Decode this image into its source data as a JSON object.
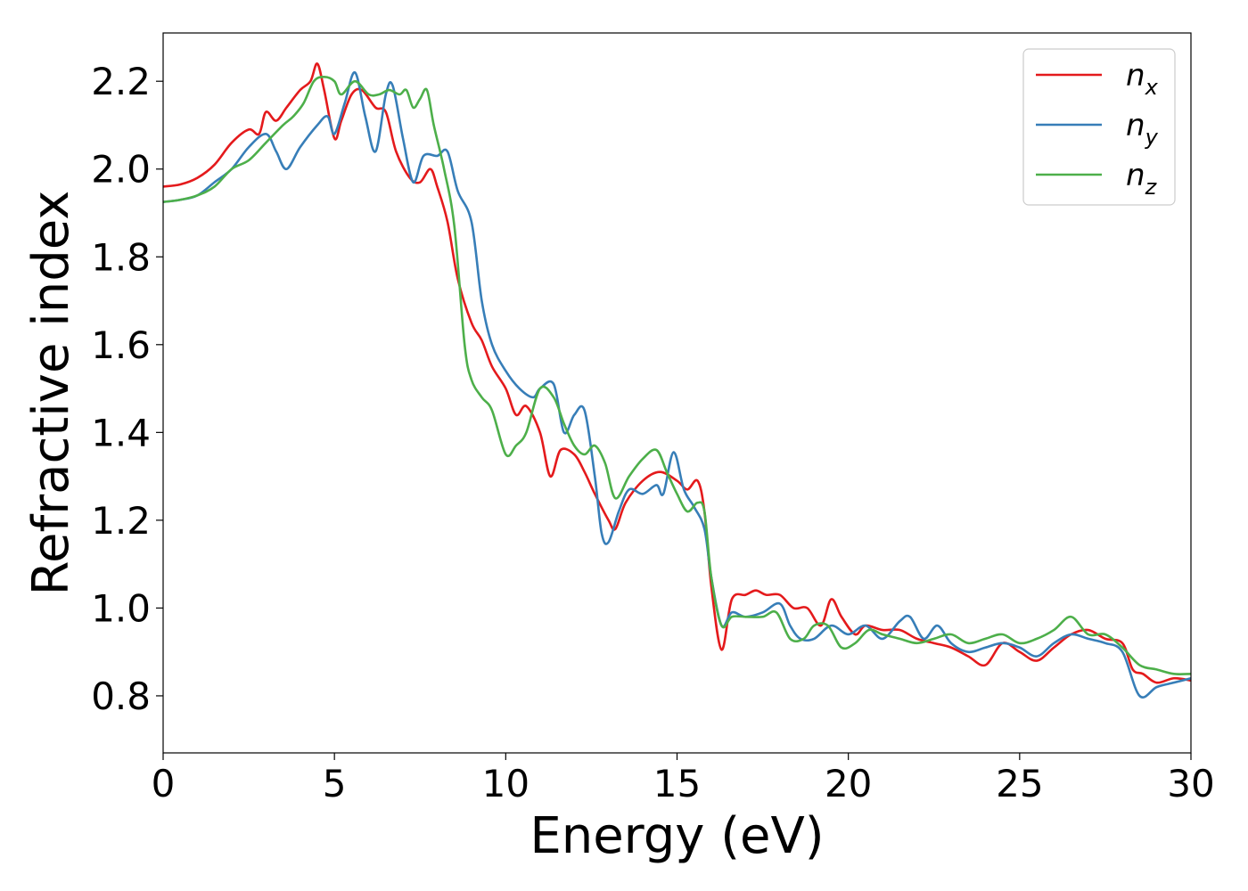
{
  "chart_data": {
    "type": "line",
    "xlabel": "Energy (eV)",
    "ylabel": "Refractive index",
    "xlim": [
      0,
      30
    ],
    "ylim": [
      0.67,
      2.31
    ],
    "xticks": [
      0,
      5,
      10,
      15,
      20,
      25,
      30
    ],
    "xtick_labels": [
      "0",
      "5",
      "10",
      "15",
      "20",
      "25",
      "30"
    ],
    "yticks": [
      0.8,
      1.0,
      1.2,
      1.4,
      1.6,
      1.8,
      2.0,
      2.2
    ],
    "ytick_labels": [
      "0.8",
      "1.0",
      "1.2",
      "1.4",
      "1.6",
      "1.8",
      "2.0",
      "2.2"
    ],
    "grid": false,
    "legend": "top-right",
    "series": [
      {
        "name": "n",
        "subscript": "x",
        "color": "#e41a1c",
        "x": [
          0,
          0.5,
          1.0,
          1.5,
          2.0,
          2.5,
          2.8,
          3.0,
          3.3,
          3.6,
          4.0,
          4.3,
          4.5,
          4.7,
          5.0,
          5.2,
          5.5,
          5.8,
          6.2,
          6.5,
          6.8,
          7.2,
          7.5,
          7.8,
          8.0,
          8.3,
          8.6,
          9.0,
          9.3,
          9.6,
          10.0,
          10.3,
          10.6,
          11.0,
          11.3,
          11.6,
          12.0,
          12.3,
          12.6,
          13.0,
          13.2,
          13.5,
          14.0,
          14.5,
          15.0,
          15.3,
          15.6,
          15.8,
          16.0,
          16.3,
          16.6,
          17.0,
          17.3,
          17.6,
          18.0,
          18.4,
          18.8,
          19.2,
          19.5,
          19.8,
          20.2,
          20.5,
          21.0,
          21.5,
          22.0,
          22.5,
          23.0,
          23.5,
          24.0,
          24.5,
          25.0,
          25.5,
          26.0,
          26.5,
          27.0,
          27.5,
          28.0,
          28.3,
          28.6,
          29.0,
          29.5,
          30.0
        ],
        "y": [
          1.96,
          1.965,
          1.98,
          2.01,
          2.06,
          2.09,
          2.08,
          2.13,
          2.11,
          2.14,
          2.18,
          2.2,
          2.24,
          2.18,
          2.07,
          2.11,
          2.17,
          2.18,
          2.14,
          2.13,
          2.04,
          1.98,
          1.97,
          2.0,
          1.96,
          1.88,
          1.75,
          1.65,
          1.61,
          1.55,
          1.5,
          1.44,
          1.46,
          1.4,
          1.3,
          1.36,
          1.35,
          1.31,
          1.26,
          1.2,
          1.18,
          1.24,
          1.29,
          1.31,
          1.29,
          1.27,
          1.29,
          1.22,
          1.05,
          0.905,
          1.02,
          1.03,
          1.04,
          1.03,
          1.03,
          1.0,
          1.0,
          0.96,
          1.02,
          0.98,
          0.94,
          0.96,
          0.95,
          0.95,
          0.93,
          0.92,
          0.91,
          0.89,
          0.87,
          0.92,
          0.9,
          0.88,
          0.91,
          0.94,
          0.95,
          0.93,
          0.92,
          0.86,
          0.85,
          0.83,
          0.84,
          0.835
        ]
      },
      {
        "name": "n",
        "subscript": "y",
        "color": "#377eb8",
        "x": [
          0,
          0.5,
          1.0,
          1.5,
          2.0,
          2.5,
          3.0,
          3.3,
          3.6,
          4.0,
          4.5,
          4.8,
          5.0,
          5.3,
          5.6,
          5.9,
          6.2,
          6.5,
          6.7,
          7.0,
          7.3,
          7.6,
          8.0,
          8.3,
          8.6,
          9.0,
          9.3,
          9.6,
          10.0,
          10.4,
          10.8,
          11.0,
          11.4,
          11.7,
          12.0,
          12.3,
          12.6,
          12.8,
          13.0,
          13.3,
          13.6,
          14.0,
          14.4,
          14.6,
          14.9,
          15.2,
          15.5,
          15.8,
          16.0,
          16.3,
          16.6,
          17.0,
          17.5,
          18.0,
          18.3,
          18.6,
          19.0,
          19.5,
          20.0,
          20.5,
          21.0,
          21.5,
          21.8,
          22.2,
          22.6,
          23.0,
          23.5,
          24.0,
          24.5,
          25.0,
          25.5,
          26.0,
          26.5,
          27.0,
          27.5,
          28.0,
          28.5,
          29.0,
          29.5,
          30.0
        ],
        "y": [
          1.925,
          1.93,
          1.94,
          1.97,
          2.0,
          2.05,
          2.08,
          2.04,
          2.0,
          2.05,
          2.1,
          2.12,
          2.08,
          2.15,
          2.22,
          2.12,
          2.04,
          2.17,
          2.19,
          2.07,
          1.97,
          2.03,
          2.03,
          2.04,
          1.95,
          1.88,
          1.7,
          1.6,
          1.54,
          1.5,
          1.48,
          1.5,
          1.51,
          1.4,
          1.44,
          1.45,
          1.3,
          1.17,
          1.15,
          1.22,
          1.27,
          1.26,
          1.28,
          1.26,
          1.355,
          1.27,
          1.23,
          1.18,
          1.07,
          0.96,
          0.99,
          0.98,
          0.99,
          1.01,
          0.96,
          0.93,
          0.93,
          0.96,
          0.94,
          0.96,
          0.93,
          0.97,
          0.98,
          0.93,
          0.96,
          0.92,
          0.9,
          0.91,
          0.92,
          0.91,
          0.89,
          0.92,
          0.94,
          0.93,
          0.92,
          0.9,
          0.8,
          0.82,
          0.83,
          0.84
        ]
      },
      {
        "name": "n",
        "subscript": "z",
        "color": "#4daf4a",
        "x": [
          0,
          0.5,
          1.0,
          1.5,
          2.0,
          2.5,
          3.0,
          3.5,
          3.8,
          4.1,
          4.4,
          4.7,
          5.0,
          5.2,
          5.6,
          6.0,
          6.3,
          6.6,
          6.9,
          7.1,
          7.3,
          7.5,
          7.7,
          7.9,
          8.2,
          8.5,
          8.8,
          9.0,
          9.3,
          9.6,
          10.0,
          10.3,
          10.6,
          11.0,
          11.4,
          11.7,
          12.0,
          12.3,
          12.6,
          12.9,
          13.2,
          13.6,
          14.0,
          14.4,
          14.7,
          15.0,
          15.3,
          15.6,
          15.8,
          16.0,
          16.3,
          16.6,
          17.0,
          17.5,
          17.9,
          18.3,
          18.7,
          19.0,
          19.4,
          19.8,
          20.2,
          20.6,
          21.0,
          21.5,
          22.0,
          22.5,
          23.0,
          23.5,
          24.0,
          24.5,
          25.0,
          25.5,
          26.0,
          26.5,
          27.0,
          27.5,
          28.0,
          28.5,
          29.0,
          29.5,
          30.0
        ],
        "y": [
          1.925,
          1.93,
          1.94,
          1.96,
          2.0,
          2.02,
          2.06,
          2.1,
          2.12,
          2.15,
          2.2,
          2.21,
          2.2,
          2.17,
          2.2,
          2.17,
          2.17,
          2.18,
          2.17,
          2.18,
          2.14,
          2.16,
          2.18,
          2.1,
          2.0,
          1.87,
          1.6,
          1.52,
          1.48,
          1.45,
          1.35,
          1.37,
          1.4,
          1.5,
          1.48,
          1.42,
          1.37,
          1.35,
          1.37,
          1.33,
          1.25,
          1.3,
          1.34,
          1.36,
          1.31,
          1.26,
          1.22,
          1.24,
          1.22,
          1.07,
          0.96,
          0.98,
          0.98,
          0.98,
          0.99,
          0.93,
          0.93,
          0.96,
          0.96,
          0.91,
          0.92,
          0.95,
          0.94,
          0.93,
          0.92,
          0.93,
          0.94,
          0.92,
          0.93,
          0.94,
          0.92,
          0.93,
          0.95,
          0.98,
          0.94,
          0.94,
          0.91,
          0.87,
          0.86,
          0.85,
          0.85
        ]
      }
    ]
  }
}
